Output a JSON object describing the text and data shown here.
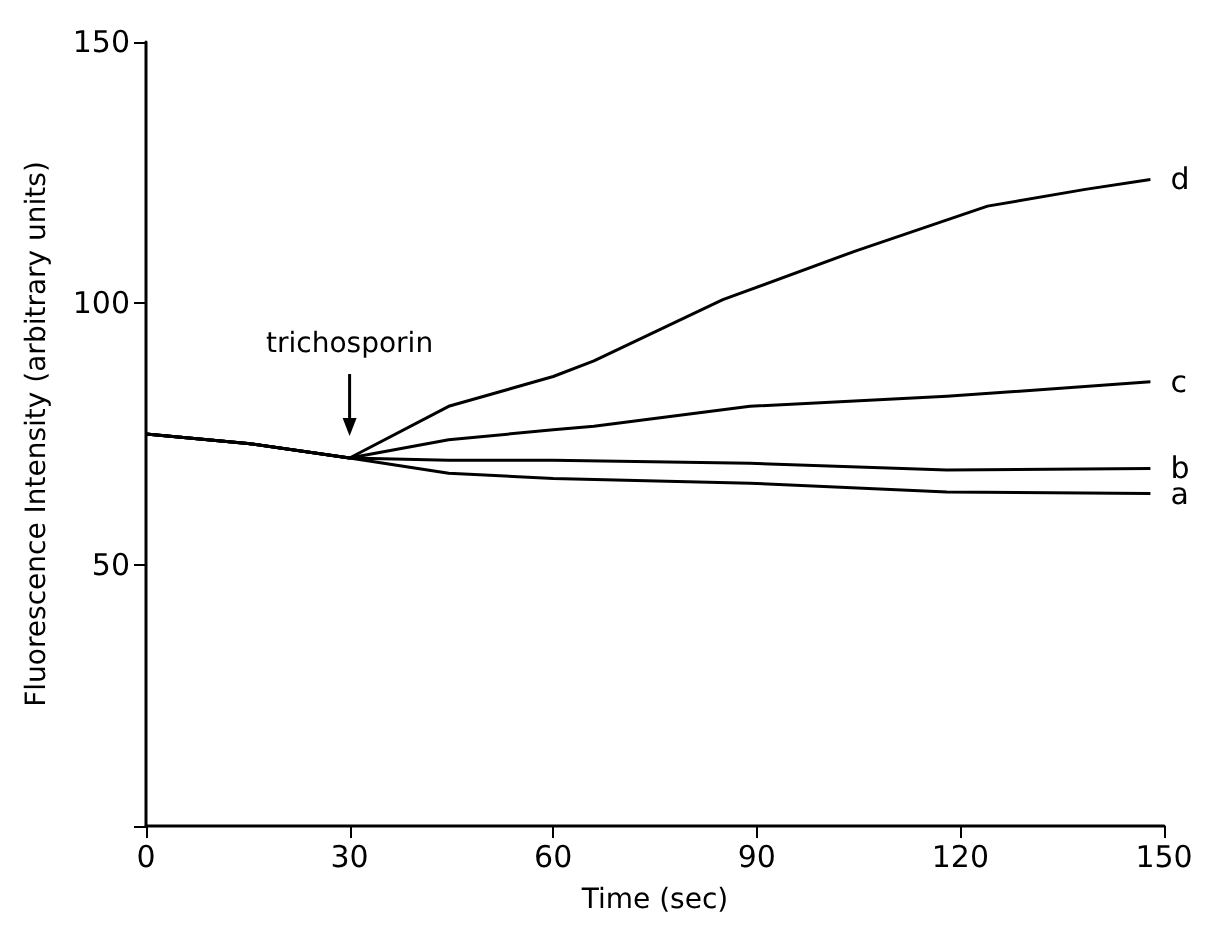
{
  "chart_data": {
    "type": "line",
    "xlabel": "Time (sec)",
    "ylabel": "Fluorescence Intensity (arbitrary units)",
    "x": [
      0,
      15,
      30,
      44.6,
      60,
      66,
      85,
      89,
      104.5,
      118,
      124,
      138.4,
      148
    ],
    "series": [
      {
        "name": "a",
        "color": "#000000",
        "values": [
          75,
          73.2,
          70.4,
          67.5,
          66.5,
          null,
          null,
          65.6,
          null,
          63.9,
          null,
          null,
          63.6
        ]
      },
      {
        "name": "b",
        "color": "#000000",
        "values": [
          75,
          73.2,
          70.4,
          70,
          70,
          null,
          null,
          69.4,
          null,
          68.1,
          null,
          null,
          68.4
        ]
      },
      {
        "name": "c",
        "color": "#000000",
        "values": [
          75,
          73.2,
          70.4,
          73.9,
          75.8,
          76.5,
          null,
          80.3,
          null,
          82.2,
          null,
          null,
          85
        ]
      },
      {
        "name": "d",
        "color": "#000000",
        "values": [
          75,
          73.2,
          70.4,
          80.3,
          86,
          89,
          100.7,
          null,
          110,
          null,
          118.6,
          121.8,
          123.7
        ]
      }
    ],
    "xlim": [
      0,
      150
    ],
    "xticks": [
      0,
      30,
      60,
      90,
      120,
      150
    ],
    "ylim": [
      0,
      150
    ],
    "yticks": [
      {
        "value": 0,
        "label": null
      },
      50,
      100,
      150
    ],
    "annotations": [
      "trichosporin"
    ],
    "grid": false,
    "legend": false,
    "marker": "none",
    "line_style": "solid"
  }
}
